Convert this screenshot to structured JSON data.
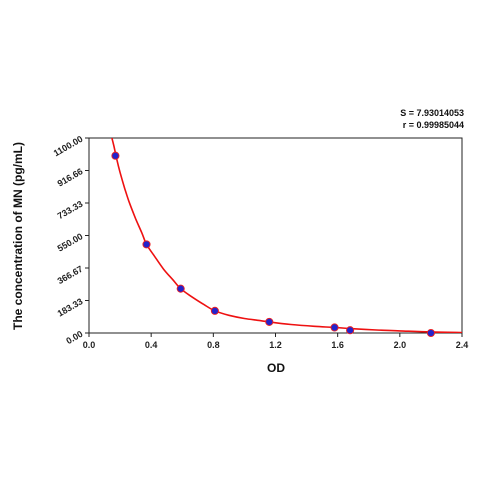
{
  "chart_data": {
    "type": "scatter",
    "title": "",
    "xlabel": "OD",
    "ylabel": "The concentration of MN (pg/mL)",
    "xlim": [
      0,
      2.4
    ],
    "ylim": [
      0,
      1100
    ],
    "x_ticks": [
      "0.0",
      "0.4",
      "0.8",
      "1.2",
      "1.6",
      "2.0",
      "2.4"
    ],
    "x_tick_values": [
      0,
      0.4,
      0.8,
      1.2,
      1.6,
      2.0,
      2.4
    ],
    "y_ticks": [
      "0.00",
      "183.33",
      "366.67",
      "550.00",
      "733.33",
      "916.66",
      "1100.00"
    ],
    "y_tick_values": [
      0,
      183.33,
      366.67,
      550.0,
      733.33,
      916.66,
      1100.0
    ],
    "grid": false,
    "series": [
      {
        "x": [
          0.17,
          0.37,
          0.59,
          0.81,
          1.16,
          1.58,
          1.68,
          2.2
        ],
        "y": [
          1000,
          500,
          250,
          125,
          62.5,
          31.25,
          15.6,
          0
        ],
        "marker_color": "#2323cc"
      }
    ],
    "fit_curve": {
      "color": "#ee1111",
      "x": [
        0.14,
        0.16,
        0.18,
        0.2,
        0.23,
        0.26,
        0.3,
        0.34,
        0.37,
        0.42,
        0.48,
        0.54,
        0.59,
        0.66,
        0.74,
        0.81,
        0.9,
        1.0,
        1.1,
        1.16,
        1.3,
        1.45,
        1.58,
        1.68,
        1.85,
        2.0,
        2.2,
        2.4
      ],
      "y": [
        1125,
        1055,
        975,
        905,
        815,
        735,
        645,
        565,
        500,
        435,
        360,
        300,
        250,
        205,
        160,
        125,
        100,
        82,
        70,
        62.5,
        48,
        38,
        31.25,
        25,
        17,
        12,
        6,
        3
      ]
    },
    "annotations": [
      "S = 7.93014053",
      "r = 0.99985044"
    ]
  }
}
